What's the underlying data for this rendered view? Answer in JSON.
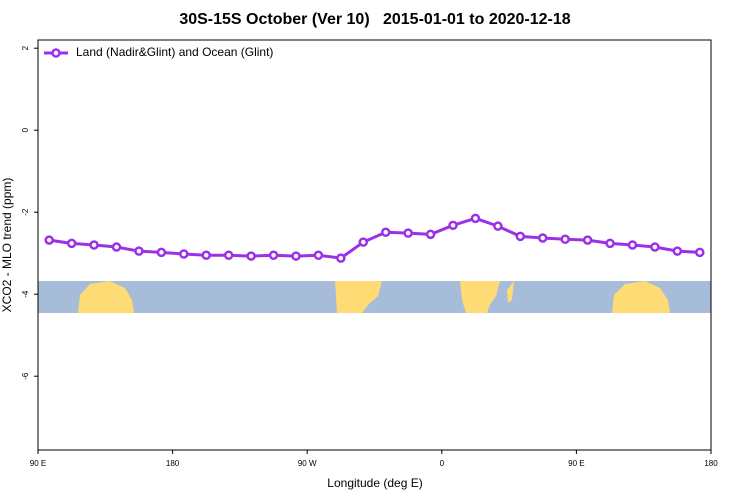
{
  "chart_data": {
    "type": "line",
    "title": "30S-15S October (Ver 10)   2015-01-01 to 2020-12-18",
    "x_label": "Longitude (deg E)",
    "y_label": "XCO2 - MLO trend (ppm)",
    "x": [
      97.5,
      112.5,
      127.5,
      142.5,
      157.5,
      172.5,
      187.5,
      202.5,
      217.5,
      232.5,
      247.5,
      262.5,
      277.5,
      292.5,
      307.5,
      322.5,
      337.5,
      352.5,
      367.5,
      382.5,
      397.5,
      412.5,
      427.5,
      442.5,
      457.5,
      472.5,
      487.5,
      502.5,
      517.5,
      532.5
    ],
    "series": [
      {
        "name": "Land (Nadir&Glint) and Ocean (Glint)",
        "color": "#9b30e6",
        "values": [
          -2.68,
          -2.76,
          -2.8,
          -2.85,
          -2.95,
          -2.98,
          -3.02,
          -3.05,
          -3.05,
          -3.07,
          -3.05,
          -3.07,
          -3.05,
          -3.12,
          -2.73,
          -2.49,
          -2.51,
          -2.54,
          -2.32,
          -2.15,
          -2.34,
          -2.59,
          -2.63,
          -2.66,
          -2.68,
          -2.76,
          -2.8,
          -2.85,
          -2.95,
          -2.98
        ]
      }
    ],
    "xlim": [
      90,
      540
    ],
    "xticks": [
      {
        "value": 90,
        "label": "90 E"
      },
      180,
      {
        "value": 270,
        "label": "90 W"
      },
      {
        "value": 360,
        "label": "0"
      },
      {
        "value": 450,
        "label": "90 E"
      },
      {
        "value": 540,
        "label": "180"
      }
    ],
    "ylim": [
      -7.8,
      2.2
    ],
    "yticks": [
      2,
      0,
      -2,
      -4,
      -6
    ],
    "legend": "top-left"
  }
}
